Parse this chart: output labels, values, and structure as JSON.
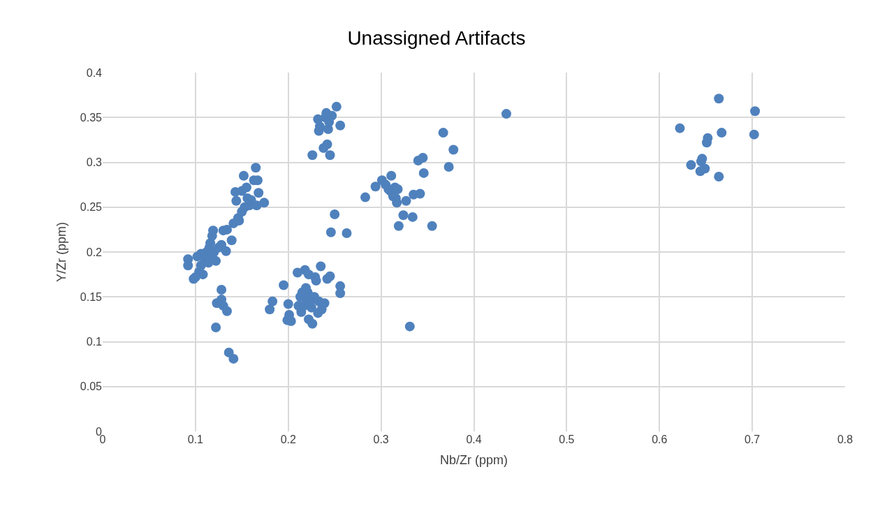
{
  "chart_data": {
    "type": "scatter",
    "title": "Unassigned Artifacts",
    "xlabel": "Nb/Zr (ppm)",
    "ylabel": "Y/Zr (ppm)",
    "xlim": [
      0,
      0.8
    ],
    "xticks": [
      0,
      0.1,
      0.2,
      0.3,
      0.4,
      0.5,
      0.6,
      0.7,
      0.8
    ],
    "ylim": [
      0,
      0.4
    ],
    "yticks": [
      0,
      0.05,
      0.1,
      0.15,
      0.2,
      0.25,
      0.3,
      0.35,
      0.4
    ],
    "grid": true,
    "marker": "circle",
    "legend": false,
    "series": [
      {
        "color": "#4f81bd",
        "x": [
          0.092,
          0.092,
          0.098,
          0.1,
          0.102,
          0.104,
          0.106,
          0.106,
          0.108,
          0.11,
          0.112,
          0.114,
          0.115,
          0.116,
          0.118,
          0.118,
          0.119,
          0.12,
          0.122,
          0.125,
          0.128,
          0.13,
          0.133,
          0.134,
          0.139,
          0.141,
          0.143,
          0.144,
          0.146,
          0.147,
          0.15,
          0.15,
          0.152,
          0.153,
          0.155,
          0.156,
          0.158,
          0.16,
          0.163,
          0.165,
          0.166,
          0.167,
          0.168,
          0.174,
          0.123,
          0.128,
          0.128,
          0.13,
          0.134,
          0.122,
          0.136,
          0.141,
          0.18,
          0.183,
          0.195,
          0.199,
          0.2,
          0.201,
          0.203,
          0.21,
          0.211,
          0.213,
          0.214,
          0.215,
          0.217,
          0.218,
          0.219,
          0.22,
          0.221,
          0.222,
          0.222,
          0.224,
          0.225,
          0.226,
          0.228,
          0.229,
          0.23,
          0.232,
          0.233,
          0.235,
          0.236,
          0.239,
          0.242,
          0.245,
          0.256,
          0.256,
          0.226,
          0.232,
          0.233,
          0.234,
          0.238,
          0.24,
          0.241,
          0.242,
          0.243,
          0.244,
          0.245,
          0.247,
          0.252,
          0.256,
          0.25,
          0.246,
          0.263,
          0.283,
          0.294,
          0.301,
          0.305,
          0.308,
          0.31,
          0.311,
          0.313,
          0.315,
          0.316,
          0.317,
          0.318,
          0.319,
          0.324,
          0.327,
          0.331,
          0.334,
          0.335,
          0.34,
          0.342,
          0.345,
          0.346,
          0.355,
          0.367,
          0.373,
          0.378,
          0.435,
          0.622,
          0.634,
          0.644,
          0.645,
          0.646,
          0.649,
          0.651,
          0.652,
          0.664,
          0.664,
          0.667,
          0.702,
          0.703
        ],
        "values": [
          0.192,
          0.185,
          0.17,
          0.172,
          0.195,
          0.178,
          0.185,
          0.198,
          0.175,
          0.192,
          0.2,
          0.188,
          0.205,
          0.21,
          0.195,
          0.218,
          0.224,
          0.2,
          0.19,
          0.205,
          0.208,
          0.224,
          0.201,
          0.225,
          0.213,
          0.232,
          0.267,
          0.257,
          0.238,
          0.235,
          0.268,
          0.245,
          0.285,
          0.25,
          0.272,
          0.26,
          0.252,
          0.258,
          0.28,
          0.294,
          0.252,
          0.28,
          0.266,
          0.255,
          0.143,
          0.158,
          0.147,
          0.14,
          0.134,
          0.116,
          0.088,
          0.081,
          0.136,
          0.145,
          0.163,
          0.124,
          0.142,
          0.13,
          0.123,
          0.177,
          0.14,
          0.15,
          0.133,
          0.155,
          0.14,
          0.18,
          0.16,
          0.147,
          0.155,
          0.175,
          0.125,
          0.145,
          0.138,
          0.12,
          0.15,
          0.172,
          0.168,
          0.132,
          0.145,
          0.184,
          0.136,
          0.143,
          0.17,
          0.173,
          0.162,
          0.154,
          0.308,
          0.348,
          0.335,
          0.34,
          0.316,
          0.35,
          0.355,
          0.32,
          0.337,
          0.345,
          0.308,
          0.352,
          0.362,
          0.341,
          0.242,
          0.222,
          0.221,
          0.261,
          0.273,
          0.28,
          0.275,
          0.27,
          0.268,
          0.285,
          0.262,
          0.272,
          0.26,
          0.255,
          0.27,
          0.229,
          0.241,
          0.257,
          0.117,
          0.239,
          0.264,
          0.302,
          0.265,
          0.305,
          0.288,
          0.229,
          0.333,
          0.295,
          0.314,
          0.354,
          0.338,
          0.297,
          0.29,
          0.301,
          0.304,
          0.293,
          0.322,
          0.327,
          0.371,
          0.284,
          0.333,
          0.331,
          0.357
        ]
      }
    ]
  }
}
